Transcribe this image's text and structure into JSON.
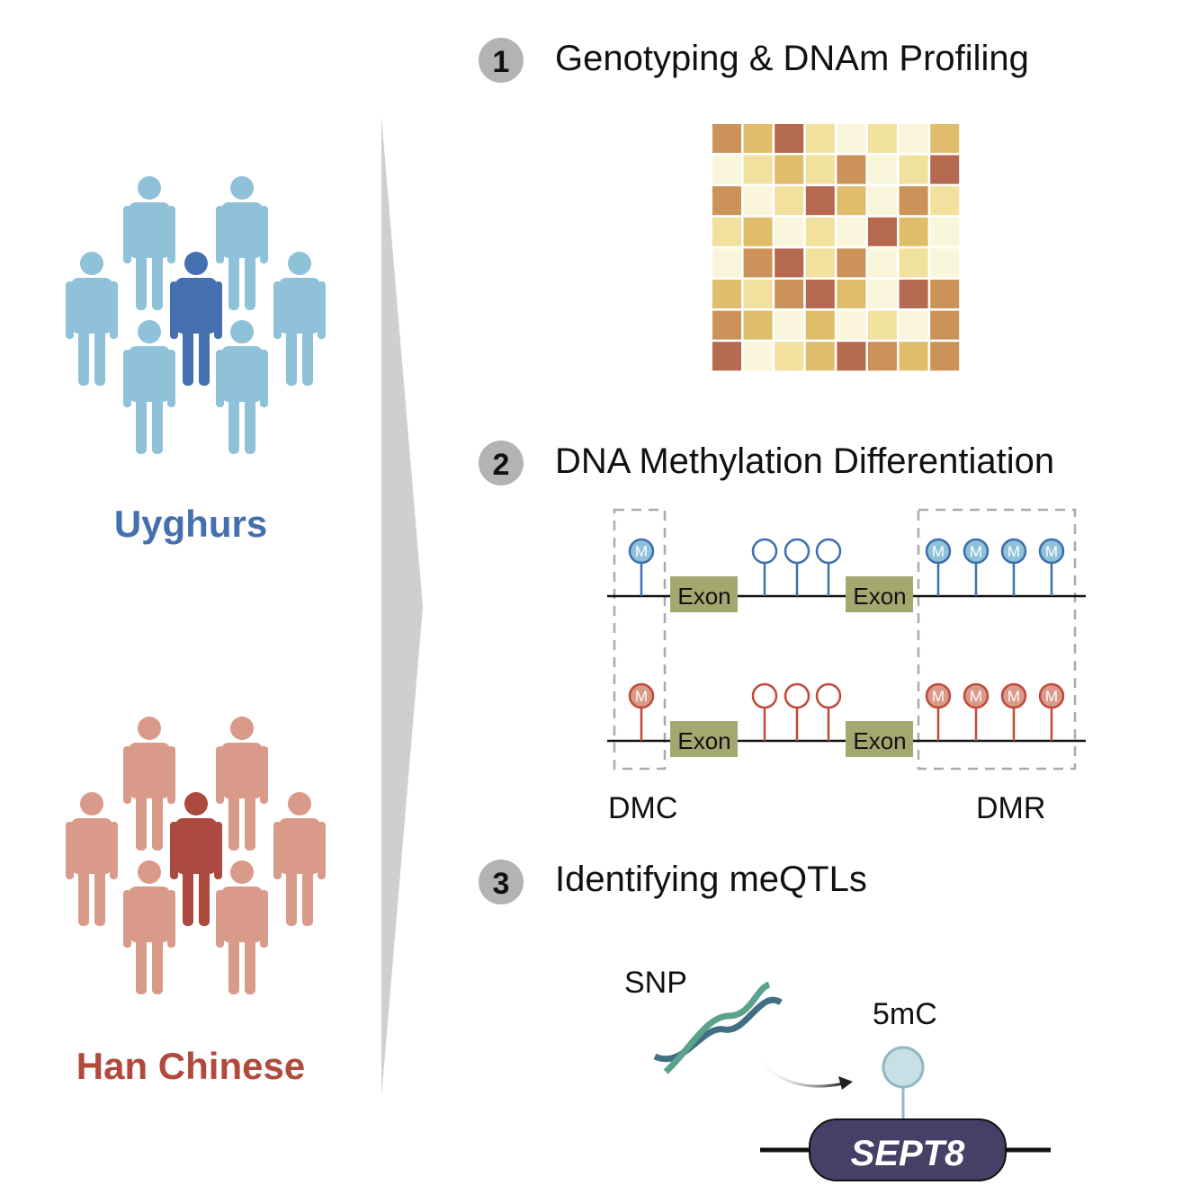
{
  "populations": [
    {
      "label": "Uyghurs",
      "color": "#4470b0",
      "light": "#8fc1d9",
      "dark": "#4470b0"
    },
    {
      "label": "Han Chinese",
      "color": "#b04a3c",
      "light": "#d99a89",
      "dark": "#ac4a3f"
    }
  ],
  "steps": [
    {
      "number": "1",
      "title": "Genotyping & DNAm Profiling"
    },
    {
      "number": "2",
      "title": "DNA Methylation Differentiation"
    },
    {
      "number": "3",
      "title": "Identifying meQTLs"
    }
  ],
  "heatmap": {
    "palette": [
      "#faf6dc",
      "#f2e09e",
      "#dfbd6a",
      "#cb935a",
      "#b5694e"
    ],
    "levels": [
      [
        3,
        2,
        4,
        1,
        0,
        1,
        0,
        2
      ],
      [
        0,
        1,
        2,
        1,
        3,
        0,
        1,
        4
      ],
      [
        3,
        0,
        1,
        4,
        2,
        0,
        3,
        1
      ],
      [
        1,
        2,
        0,
        1,
        0,
        4,
        2,
        0
      ],
      [
        0,
        3,
        4,
        1,
        3,
        0,
        1,
        0
      ],
      [
        2,
        1,
        3,
        4,
        2,
        0,
        4,
        3
      ],
      [
        3,
        2,
        0,
        2,
        0,
        1,
        0,
        3
      ],
      [
        4,
        0,
        1,
        2,
        4,
        3,
        2,
        3
      ]
    ]
  },
  "methylation": {
    "exon_label": "Exon",
    "methyl_mark": "M",
    "dmc_label": "DMC",
    "dmr_label": "DMR",
    "exon_color": "#a3a86f"
  },
  "meqtl": {
    "snp_label": "SNP",
    "mc_label": "5mC",
    "gene": "SEPT8",
    "gene_color": "#463f66"
  }
}
